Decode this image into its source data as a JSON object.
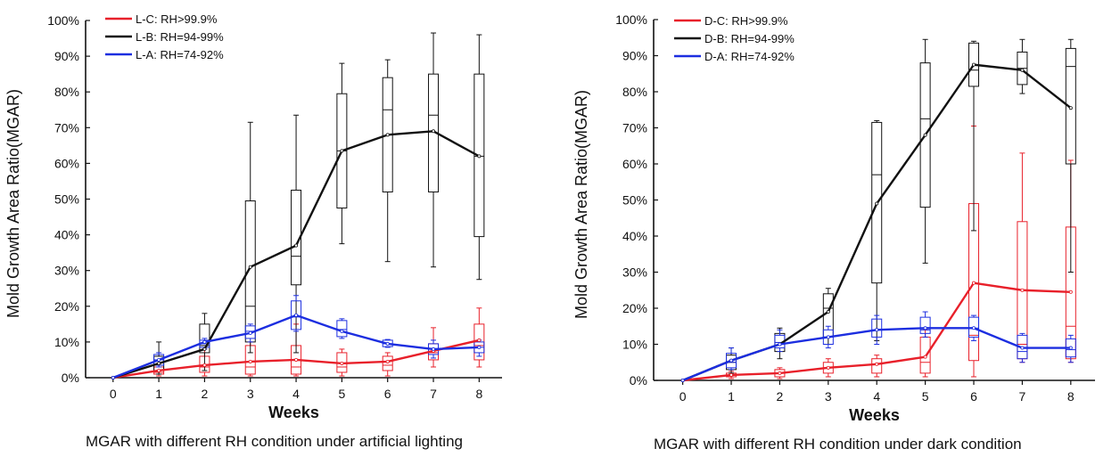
{
  "chart_data": [
    {
      "type": "line",
      "title": "MGAR with different RH condition under artificial lighting",
      "xlabel": "Weeks",
      "ylabel": "Mold Growth Area Ratio(MGAR)",
      "x": [
        0,
        1,
        2,
        3,
        4,
        5,
        6,
        7,
        8
      ],
      "xlim": [
        -0.6,
        8.5
      ],
      "ylim": [
        0,
        100
      ],
      "yticks": [
        "0%",
        "10%",
        "20%",
        "30%",
        "40%",
        "50%",
        "60%",
        "70%",
        "80%",
        "90%",
        "100%"
      ],
      "legend_position": "top-left",
      "series": [
        {
          "name": "L-C: RH>99.9%",
          "color": "#e8202a",
          "values": [
            0,
            2,
            3.5,
            4.5,
            5,
            4,
            4.5,
            7.5,
            10.5
          ],
          "boxes": [
            null,
            {
              "min": 0.5,
              "q1": 1,
              "median": 1.5,
              "q3": 3,
              "max": 4
            },
            {
              "min": 0.5,
              "q1": 1.5,
              "median": 3,
              "q3": 6,
              "max": 8
            },
            {
              "min": 0.5,
              "q1": 1,
              "median": 3,
              "q3": 9,
              "max": 10
            },
            {
              "min": 0.5,
              "q1": 1,
              "median": 3,
              "q3": 9,
              "max": 15
            },
            {
              "min": 0.5,
              "q1": 1.5,
              "median": 3,
              "q3": 7,
              "max": 8
            },
            {
              "min": 0.5,
              "q1": 2,
              "median": 3.5,
              "q3": 6,
              "max": 7
            },
            {
              "min": 3,
              "q1": 5,
              "median": 7,
              "q3": 9.5,
              "max": 14
            },
            {
              "min": 3,
              "q1": 5,
              "median": 9,
              "q3": 15,
              "max": 19.5
            }
          ]
        },
        {
          "name": "L-B: RH=94-99%",
          "color": "#111111",
          "values": [
            0,
            4,
            8,
            31,
            37,
            63.5,
            68,
            69,
            62
          ],
          "boxes": [
            null,
            {
              "min": 1,
              "q1": 2,
              "median": 3.5,
              "q3": 6,
              "max": 10
            },
            {
              "min": 2,
              "q1": 7,
              "median": 9,
              "q3": 15,
              "max": 18
            },
            {
              "min": 7,
              "q1": 10,
              "median": 20,
              "q3": 49.5,
              "max": 71.5
            },
            {
              "min": 7,
              "q1": 26,
              "median": 34,
              "q3": 52.5,
              "max": 73.5
            },
            {
              "min": 37.5,
              "q1": 47.5,
              "median": 63.5,
              "q3": 79.5,
              "max": 88
            },
            {
              "min": 32.5,
              "q1": 52,
              "median": 75,
              "q3": 84,
              "max": 89
            },
            {
              "min": 31,
              "q1": 52,
              "median": 73.5,
              "q3": 85,
              "max": 96.5
            },
            {
              "min": 27.5,
              "q1": 39.5,
              "median": 62,
              "q3": 85,
              "max": 96
            }
          ]
        },
        {
          "name": "L-A: RH=74-92%",
          "color": "#1c2ee0",
          "values": [
            0,
            5,
            10,
            12.5,
            17.5,
            13,
            9.5,
            8,
            8.5
          ],
          "boxes": [
            null,
            {
              "min": 3,
              "q1": 3.5,
              "median": 5,
              "q3": 6.5,
              "max": 7
            },
            {
              "min": 8,
              "q1": 8.5,
              "median": 9.5,
              "q3": 10.5,
              "max": 11
            },
            {
              "min": 10,
              "q1": 11,
              "median": 13,
              "q3": 14.5,
              "max": 15
            },
            {
              "min": 13,
              "q1": 13.5,
              "median": 17,
              "q3": 21.5,
              "max": 23
            },
            {
              "min": 11,
              "q1": 11.5,
              "median": 13.5,
              "q3": 16,
              "max": 16.5
            },
            {
              "min": 8.5,
              "q1": 8.7,
              "median": 9.5,
              "q3": 10.5,
              "max": 10.7
            },
            {
              "min": 5.5,
              "q1": 6.5,
              "median": 8,
              "q3": 9.5,
              "max": 10.5
            },
            {
              "min": 6,
              "q1": 7,
              "median": 8.5,
              "q3": 10,
              "max": 10.5
            }
          ]
        }
      ]
    },
    {
      "type": "line",
      "title": "MGAR with different RH condition under dark condition",
      "xlabel": "Weeks",
      "ylabel": "Mold Growth Area Ratio(MGAR)",
      "x": [
        0,
        1,
        2,
        3,
        4,
        5,
        6,
        7,
        8
      ],
      "xlim": [
        -0.6,
        8.5
      ],
      "ylim": [
        0,
        100
      ],
      "yticks": [
        "0%",
        "10%",
        "20%",
        "30%",
        "40%",
        "50%",
        "60%",
        "70%",
        "80%",
        "90%",
        "100%"
      ],
      "legend_position": "top-left",
      "series": [
        {
          "name": "D-C: RH>99.9%",
          "color": "#e8202a",
          "values": [
            0,
            1.5,
            2,
            3.5,
            4.5,
            6.5,
            27,
            25,
            24.5
          ],
          "boxes": [
            null,
            {
              "min": 0.5,
              "q1": 1,
              "median": 1.5,
              "q3": 2,
              "max": 2.5
            },
            {
              "min": 0.5,
              "q1": 1,
              "median": 2,
              "q3": 3,
              "max": 3.5
            },
            {
              "min": 1,
              "q1": 2,
              "median": 3.5,
              "q3": 5,
              "max": 6
            },
            {
              "min": 1,
              "q1": 2,
              "median": 4.5,
              "q3": 6,
              "max": 7
            },
            {
              "min": 1,
              "q1": 2,
              "median": 5,
              "q3": 12,
              "max": 14
            },
            {
              "min": 1,
              "q1": 5.5,
              "median": 12.5,
              "q3": 49,
              "max": 70.5
            },
            {
              "min": 5,
              "q1": 6,
              "median": 10,
              "q3": 44,
              "max": 63
            },
            {
              "min": 5,
              "q1": 6,
              "median": 15,
              "q3": 42.5,
              "max": 61
            }
          ]
        },
        {
          "name": "D-B: RH=94-99%",
          "color": "#111111",
          "values": [
            0,
            5.5,
            10,
            19,
            49,
            68,
            87.5,
            86,
            75.5
          ],
          "boxes": [
            null,
            {
              "min": 2,
              "q1": 3,
              "median": 5,
              "q3": 7,
              "max": 9
            },
            {
              "min": 6,
              "q1": 8,
              "median": 10.5,
              "q3": 13,
              "max": 14.5
            },
            {
              "min": 10,
              "q1": 12,
              "median": 20,
              "q3": 24,
              "max": 25.5
            },
            {
              "min": 11,
              "q1": 27,
              "median": 57,
              "q3": 71.5,
              "max": 72
            },
            {
              "min": 32.5,
              "q1": 48,
              "median": 72.5,
              "q3": 88,
              "max": 94.5
            },
            {
              "min": 41.5,
              "q1": 81.5,
              "median": 86,
              "q3": 93.5,
              "max": 94
            },
            {
              "min": 79.5,
              "q1": 82,
              "median": 86.5,
              "q3": 91,
              "max": 94.5
            },
            {
              "min": 30,
              "q1": 60,
              "median": 87,
              "q3": 92,
              "max": 94.5
            }
          ]
        },
        {
          "name": "D-A: RH=74-92%",
          "color": "#1c2ee0",
          "values": [
            0,
            5.5,
            10,
            12,
            14,
            14.5,
            14.5,
            9,
            9
          ],
          "boxes": [
            null,
            {
              "min": 3,
              "q1": 3.5,
              "median": 5,
              "q3": 7.5,
              "max": 9
            },
            {
              "min": 8,
              "q1": 9,
              "median": 10.5,
              "q3": 12.5,
              "max": 14
            },
            {
              "min": 9,
              "q1": 10,
              "median": 12,
              "q3": 14,
              "max": 15
            },
            {
              "min": 10,
              "q1": 12,
              "median": 14,
              "q3": 17,
              "max": 18
            },
            {
              "min": 12,
              "q1": 13,
              "median": 14,
              "q3": 17.5,
              "max": 19
            },
            {
              "min": 11,
              "q1": 12,
              "median": 14.5,
              "q3": 17.5,
              "max": 18
            },
            {
              "min": 5,
              "q1": 6,
              "median": 8,
              "q3": 12.5,
              "max": 13
            },
            {
              "min": 5,
              "q1": 6.5,
              "median": 8.5,
              "q3": 11.5,
              "max": 12.5
            }
          ]
        }
      ]
    }
  ]
}
